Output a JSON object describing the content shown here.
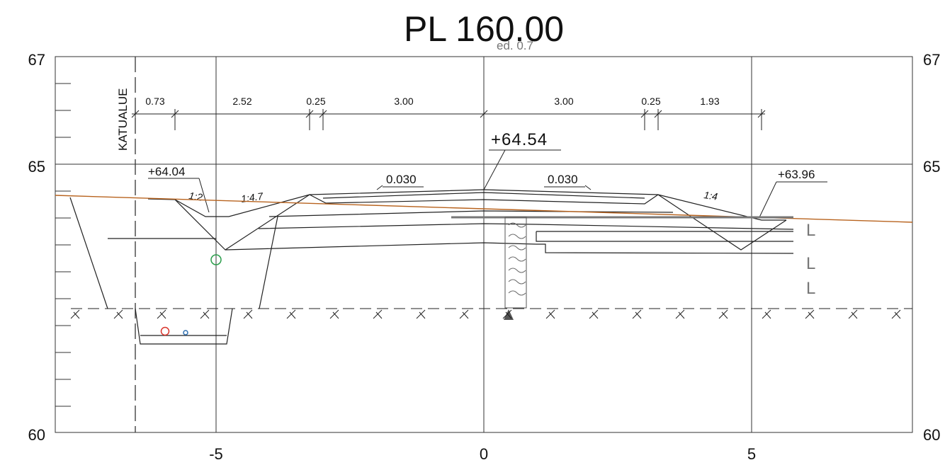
{
  "title": "PL 160.00",
  "subtitle": "ed. 0.7",
  "y_axis": {
    "labels_left": [
      "67",
      "65",
      "60"
    ],
    "labels_right": [
      "67",
      "65",
      "60"
    ]
  },
  "x_axis": {
    "labels": [
      "-5",
      "0",
      "5"
    ]
  },
  "zone_label": "KATUALUE",
  "dimensions": {
    "left": [
      "0.73",
      "2.52",
      "0.25",
      "3.00"
    ],
    "right": [
      "3.00",
      "0.25",
      "1.93"
    ]
  },
  "elevations": {
    "center": "+64.54",
    "left": "+64.04",
    "right": "+63.96"
  },
  "crossfall": {
    "left": "0.030",
    "right": "0.030"
  },
  "slopes": {
    "ditch_left_inner": "1:2",
    "ditch_left_outer": "1:4.7",
    "ditch_right": "1:4"
  },
  "layer_marks": [
    "L",
    "L",
    "L"
  ],
  "colors": {
    "line": "#222222",
    "ground_line": "#b8631e",
    "grid": "#333333",
    "pipe_red": "#d9342b",
    "pipe_blue": "#2f6fb0",
    "pipe_green": "#2a9d4a",
    "grey": "#777777"
  }
}
